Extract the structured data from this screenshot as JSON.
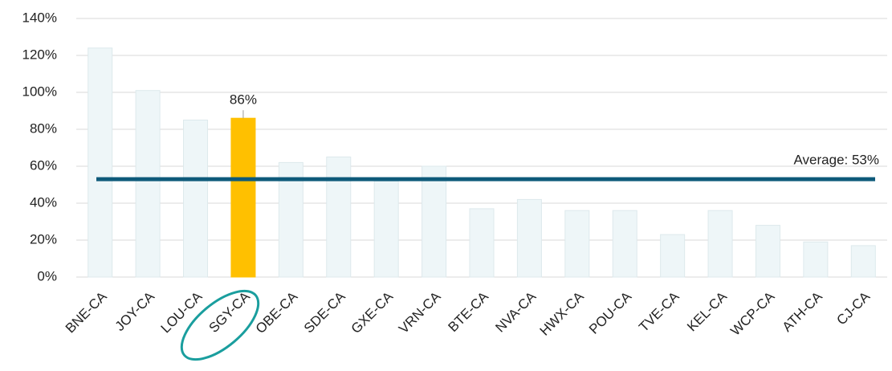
{
  "chart_data": {
    "type": "bar",
    "categories": [
      "BNE-CA",
      "JOY-CA",
      "LOU-CA",
      "SGY-CA",
      "OBE-CA",
      "SDE-CA",
      "GXE-CA",
      "VRN-CA",
      "BTE-CA",
      "NVA-CA",
      "HWX-CA",
      "POU-CA",
      "TVE-CA",
      "KEL-CA",
      "WCP-CA",
      "ATH-CA",
      "CJ-CA"
    ],
    "values": [
      124,
      101,
      85,
      86,
      62,
      65,
      52,
      60,
      37,
      42,
      36,
      36,
      23,
      36,
      28,
      19,
      17
    ],
    "value_labels": [
      null,
      null,
      null,
      "86%",
      null,
      null,
      null,
      null,
      null,
      null,
      null,
      null,
      null,
      null,
      null,
      null,
      null
    ],
    "colors": [
      "#eef6f8",
      "#eef6f8",
      "#eef6f8",
      "#ffc000",
      "#eef6f8",
      "#eef6f8",
      "#eef6f8",
      "#eef6f8",
      "#eef6f8",
      "#eef6f8",
      "#eef6f8",
      "#eef6f8",
      "#eef6f8",
      "#eef6f8",
      "#eef6f8",
      "#eef6f8",
      "#eef6f8"
    ],
    "ylim": [
      0,
      140
    ],
    "yticks": [
      {
        "value": 0,
        "label": "0%"
      },
      {
        "value": 20,
        "label": "20%"
      },
      {
        "value": 40,
        "label": "40%"
      },
      {
        "value": 60,
        "label": "60%"
      },
      {
        "value": 80,
        "label": "80%"
      },
      {
        "value": 100,
        "label": "100%"
      },
      {
        "value": 120,
        "label": "120%"
      },
      {
        "value": 140,
        "label": "140%"
      }
    ],
    "grid": true,
    "average": 53,
    "average_label": "Average: 53%",
    "average_color": "#0e5a7a"
  }
}
